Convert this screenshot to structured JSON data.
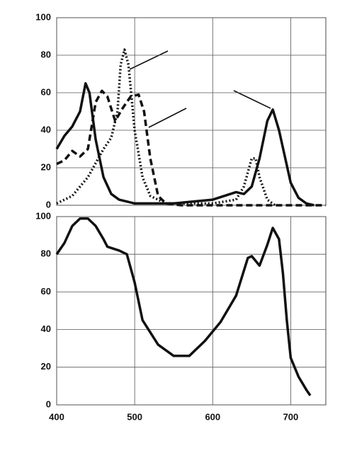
{
  "chart_data": [
    {
      "type": "line",
      "xlim": [
        400,
        745
      ],
      "ylim": [
        0,
        100
      ],
      "yticks": [
        0,
        20,
        40,
        60,
        80,
        100
      ],
      "grid": true,
      "series": [
        {
          "color": "#111111",
          "style": "solid",
          "x": [
            400,
            410,
            420,
            430,
            437,
            442,
            450,
            460,
            470,
            480,
            500,
            550,
            600,
            630,
            640,
            650,
            660,
            670,
            677,
            685,
            700,
            710,
            720,
            730
          ],
          "values": [
            30,
            37,
            42,
            50,
            65,
            60,
            35,
            15,
            6,
            3,
            1,
            1,
            3,
            7,
            6,
            10,
            25,
            45,
            51,
            40,
            12,
            4,
            1,
            0
          ]
        },
        {
          "color": "#111111",
          "style": "dotted",
          "x": [
            400,
            420,
            440,
            460,
            470,
            478,
            482,
            487,
            492,
            500,
            510,
            520,
            540,
            600,
            630,
            640,
            650,
            655,
            660,
            670,
            680
          ],
          "values": [
            1,
            5,
            15,
            30,
            36,
            50,
            75,
            83,
            75,
            40,
            15,
            5,
            1,
            1,
            3,
            10,
            25,
            25,
            15,
            3,
            0
          ]
        },
        {
          "color": "#111111",
          "style": "dashed",
          "x": [
            400,
            410,
            420,
            430,
            440,
            450,
            458,
            465,
            475,
            485,
            495,
            505,
            512,
            520,
            530,
            540,
            560,
            745
          ],
          "values": [
            22,
            24,
            29,
            26,
            30,
            55,
            61,
            58,
            45,
            52,
            58,
            59,
            50,
            25,
            5,
            1,
            0,
            0
          ]
        }
      ]
    },
    {
      "type": "line",
      "xlim": [
        400,
        745
      ],
      "ylim": [
        0,
        100
      ],
      "yticks": [
        0,
        20,
        40,
        60,
        80,
        100
      ],
      "xticks": [
        400,
        500,
        600,
        700
      ],
      "grid": true,
      "series": [
        {
          "color": "#111111",
          "style": "solid",
          "x": [
            400,
            410,
            420,
            430,
            440,
            450,
            460,
            465,
            480,
            490,
            500,
            510,
            530,
            550,
            570,
            590,
            610,
            630,
            645,
            650,
            660,
            670,
            677,
            685,
            690,
            695,
            700,
            710,
            720,
            725
          ],
          "values": [
            80,
            86,
            95,
            99,
            99,
            95,
            88,
            84,
            82,
            80,
            65,
            45,
            32,
            26,
            26,
            34,
            44,
            58,
            78,
            79,
            74,
            85,
            94,
            88,
            70,
            45,
            25,
            15,
            8,
            5
          ]
        }
      ]
    }
  ]
}
